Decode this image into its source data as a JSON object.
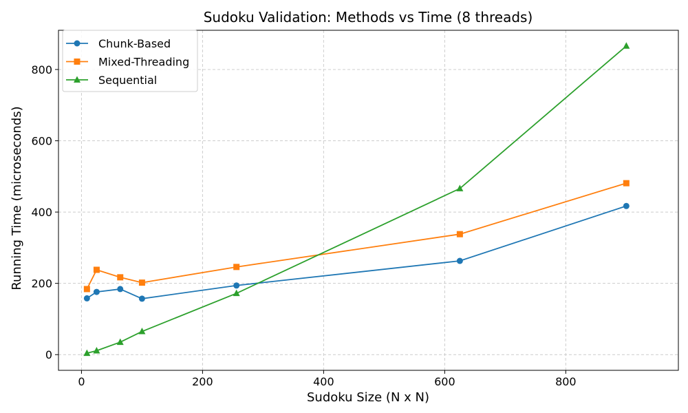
{
  "chart_data": {
    "type": "line",
    "title": "Sudoku Validation: Methods vs Time (8 threads)",
    "xlabel": "Sudoku Size (N x N)",
    "ylabel": "Running Time (microseconds)",
    "xlim": [
      -38,
      986
    ],
    "ylim": [
      -44,
      910
    ],
    "x_ticks": [
      "0",
      "200",
      "400",
      "600",
      "800"
    ],
    "y_ticks": [
      "0",
      "200",
      "400",
      "600",
      "800"
    ],
    "grid": true,
    "legend_position": "top-left",
    "x": [
      9,
      25,
      64,
      100,
      256,
      625,
      900
    ],
    "series": [
      {
        "name": "Chunk-Based",
        "color": "#1f77b4",
        "marker": "circle",
        "values": [
          158,
          176,
          184,
          157,
          194,
          263,
          417
        ]
      },
      {
        "name": "Mixed-Threading",
        "color": "#ff7f0e",
        "marker": "square",
        "values": [
          184,
          238,
          217,
          202,
          246,
          338,
          481
        ]
      },
      {
        "name": "Sequential",
        "color": "#2ca02c",
        "marker": "triangle",
        "values": [
          4,
          11,
          35,
          65,
          172,
          466,
          866
        ]
      }
    ]
  }
}
